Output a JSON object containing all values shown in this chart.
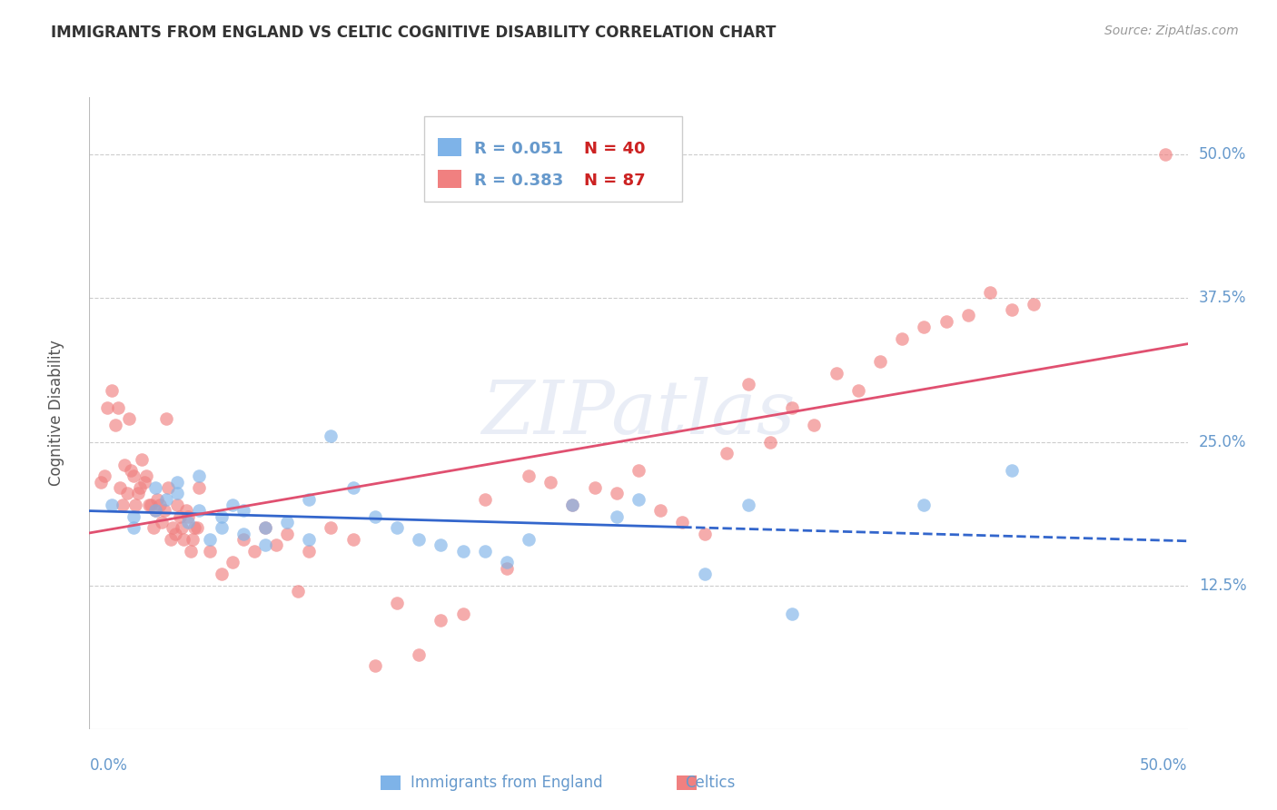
{
  "title": "IMMIGRANTS FROM ENGLAND VS CELTIC COGNITIVE DISABILITY CORRELATION CHART",
  "source": "Source: ZipAtlas.com",
  "ylabel": "Cognitive Disability",
  "ytick_labels": [
    "50.0%",
    "37.5%",
    "25.0%",
    "12.5%"
  ],
  "ytick_values": [
    0.5,
    0.375,
    0.25,
    0.125
  ],
  "xmin": 0.0,
  "xmax": 0.5,
  "ymin": 0.0,
  "ymax": 0.55,
  "england_color": "#7EB3E8",
  "celtic_color": "#F08080",
  "england_line_color": "#3366CC",
  "celtic_line_color": "#E05070",
  "background_color": "#FFFFFF",
  "grid_color": "#CCCCCC",
  "axis_label_color": "#6699CC",
  "title_color": "#333333",
  "watermark": "ZIPatlas",
  "england_scatter_x": [
    0.01,
    0.02,
    0.02,
    0.03,
    0.03,
    0.035,
    0.04,
    0.04,
    0.045,
    0.05,
    0.05,
    0.055,
    0.06,
    0.06,
    0.065,
    0.07,
    0.07,
    0.08,
    0.08,
    0.09,
    0.1,
    0.1,
    0.11,
    0.12,
    0.13,
    0.14,
    0.15,
    0.16,
    0.17,
    0.18,
    0.19,
    0.2,
    0.22,
    0.24,
    0.25,
    0.28,
    0.3,
    0.32,
    0.38,
    0.42
  ],
  "england_scatter_y": [
    0.195,
    0.185,
    0.175,
    0.21,
    0.19,
    0.2,
    0.215,
    0.205,
    0.18,
    0.22,
    0.19,
    0.165,
    0.175,
    0.185,
    0.195,
    0.17,
    0.19,
    0.175,
    0.16,
    0.18,
    0.2,
    0.165,
    0.255,
    0.21,
    0.185,
    0.175,
    0.165,
    0.16,
    0.155,
    0.155,
    0.145,
    0.165,
    0.195,
    0.185,
    0.2,
    0.135,
    0.195,
    0.1,
    0.195,
    0.225
  ],
  "celtic_scatter_x": [
    0.005,
    0.007,
    0.008,
    0.01,
    0.012,
    0.013,
    0.014,
    0.015,
    0.016,
    0.017,
    0.018,
    0.019,
    0.02,
    0.021,
    0.022,
    0.023,
    0.024,
    0.025,
    0.026,
    0.027,
    0.028,
    0.029,
    0.03,
    0.031,
    0.032,
    0.033,
    0.034,
    0.035,
    0.036,
    0.037,
    0.038,
    0.039,
    0.04,
    0.041,
    0.042,
    0.043,
    0.044,
    0.045,
    0.046,
    0.047,
    0.048,
    0.049,
    0.05,
    0.055,
    0.06,
    0.065,
    0.07,
    0.075,
    0.08,
    0.085,
    0.09,
    0.095,
    0.1,
    0.11,
    0.12,
    0.13,
    0.14,
    0.15,
    0.16,
    0.17,
    0.18,
    0.19,
    0.2,
    0.21,
    0.22,
    0.23,
    0.24,
    0.25,
    0.26,
    0.27,
    0.28,
    0.29,
    0.3,
    0.31,
    0.32,
    0.33,
    0.34,
    0.35,
    0.36,
    0.37,
    0.38,
    0.39,
    0.4,
    0.41,
    0.42,
    0.43,
    0.49
  ],
  "celtic_scatter_y": [
    0.215,
    0.22,
    0.28,
    0.295,
    0.265,
    0.28,
    0.21,
    0.195,
    0.23,
    0.205,
    0.27,
    0.225,
    0.22,
    0.195,
    0.205,
    0.21,
    0.235,
    0.215,
    0.22,
    0.195,
    0.195,
    0.175,
    0.19,
    0.2,
    0.195,
    0.18,
    0.19,
    0.27,
    0.21,
    0.165,
    0.175,
    0.17,
    0.195,
    0.185,
    0.175,
    0.165,
    0.19,
    0.185,
    0.155,
    0.165,
    0.175,
    0.175,
    0.21,
    0.155,
    0.135,
    0.145,
    0.165,
    0.155,
    0.175,
    0.16,
    0.17,
    0.12,
    0.155,
    0.175,
    0.165,
    0.055,
    0.11,
    0.065,
    0.095,
    0.1,
    0.2,
    0.14,
    0.22,
    0.215,
    0.195,
    0.21,
    0.205,
    0.225,
    0.19,
    0.18,
    0.17,
    0.24,
    0.3,
    0.25,
    0.28,
    0.265,
    0.31,
    0.295,
    0.32,
    0.34,
    0.35,
    0.355,
    0.36,
    0.38,
    0.365,
    0.37,
    0.5
  ]
}
